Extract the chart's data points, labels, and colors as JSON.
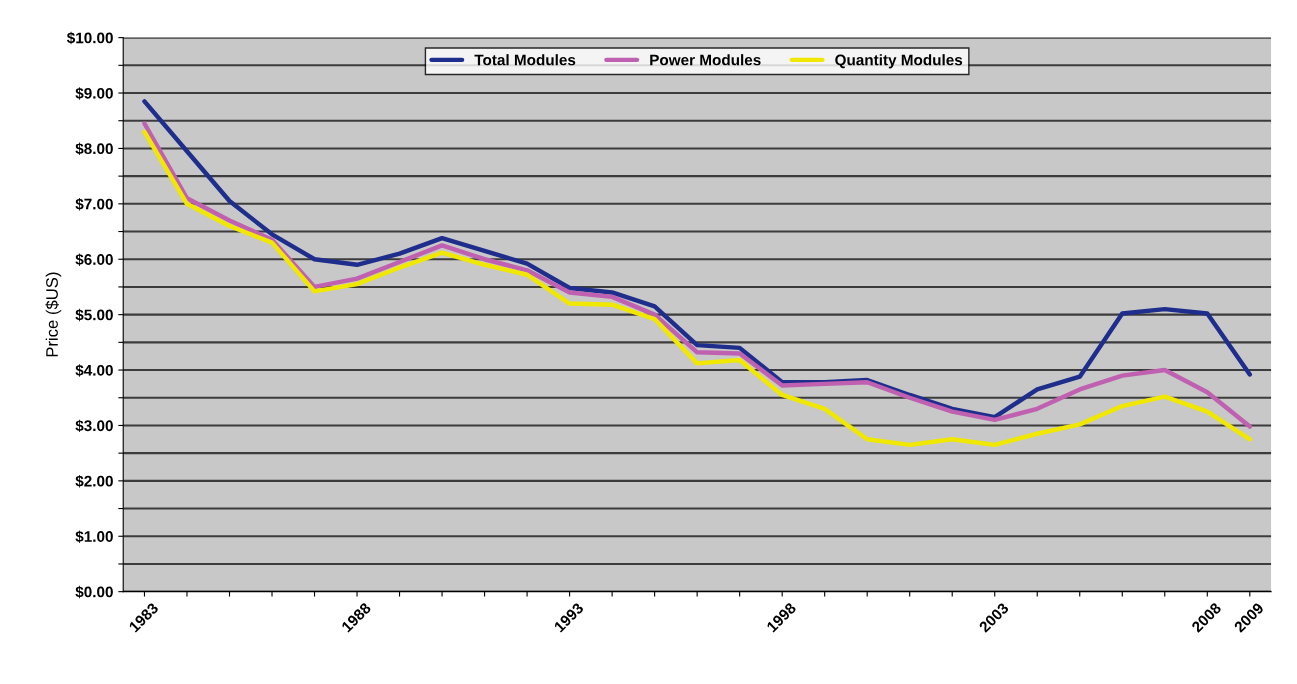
{
  "chart_data": {
    "type": "line",
    "ylabel": "Price ($US)",
    "categories": [
      "1983",
      null,
      null,
      null,
      null,
      "1988",
      null,
      null,
      null,
      null,
      "1993",
      null,
      null,
      null,
      null,
      "1998",
      null,
      null,
      null,
      null,
      "2003",
      null,
      null,
      null,
      null,
      "2008",
      "2009"
    ],
    "series": [
      {
        "name": "Total Modules",
        "color": "#1f2e8c",
        "values": [
          8.85,
          7.95,
          7.05,
          6.45,
          6.0,
          5.9,
          6.1,
          6.38,
          6.15,
          5.92,
          5.48,
          5.4,
          5.15,
          4.45,
          4.4,
          3.78,
          3.78,
          3.82,
          3.55,
          3.3,
          3.15,
          3.65,
          3.88,
          5.02,
          5.1,
          5.02,
          3.92
        ]
      },
      {
        "name": "Power Modules",
        "color": "#c060b0",
        "values": [
          8.45,
          7.1,
          6.7,
          6.35,
          5.5,
          5.65,
          5.95,
          6.25,
          6.0,
          5.8,
          5.4,
          5.32,
          5.0,
          4.32,
          4.3,
          3.72,
          3.75,
          3.78,
          3.5,
          3.25,
          3.1,
          3.3,
          3.65,
          3.9,
          4.0,
          3.6,
          2.98
        ]
      },
      {
        "name": "Quantity Modules",
        "color": "#f0e800",
        "values": [
          8.3,
          7.0,
          6.6,
          6.3,
          5.42,
          5.55,
          5.85,
          6.12,
          5.9,
          5.72,
          5.2,
          5.18,
          4.92,
          4.12,
          4.18,
          3.55,
          3.3,
          2.75,
          2.65,
          2.75,
          2.65,
          2.85,
          3.02,
          3.35,
          3.52,
          3.25,
          2.75
        ]
      }
    ],
    "ylim": [
      0,
      10
    ],
    "yticks": [
      {
        "value": 0,
        "label": "$0.00"
      },
      {
        "value": 0.5,
        "label": null
      },
      {
        "value": 1,
        "label": "$1.00"
      },
      {
        "value": 1.5,
        "label": null
      },
      {
        "value": 2,
        "label": "$2.00"
      },
      {
        "value": 2.5,
        "label": null
      },
      {
        "value": 3,
        "label": "$3.00"
      },
      {
        "value": 3.5,
        "label": null
      },
      {
        "value": 4,
        "label": "$4.00"
      },
      {
        "value": 4.5,
        "label": null
      },
      {
        "value": 5,
        "label": "$5.00"
      },
      {
        "value": 5.5,
        "label": null
      },
      {
        "value": 6,
        "label": "$6.00"
      },
      {
        "value": 6.5,
        "label": null
      },
      {
        "value": 7,
        "label": "$7.00"
      },
      {
        "value": 7.5,
        "label": null
      },
      {
        "value": 8,
        "label": "$8.00"
      },
      {
        "value": 8.5,
        "label": null
      },
      {
        "value": 9,
        "label": "$9.00"
      },
      {
        "value": 9.5,
        "label": null
      },
      {
        "value": 10,
        "label": "$10.00"
      }
    ],
    "grid": "y",
    "legend": "top",
    "marker": "none",
    "line_style": "solid"
  }
}
